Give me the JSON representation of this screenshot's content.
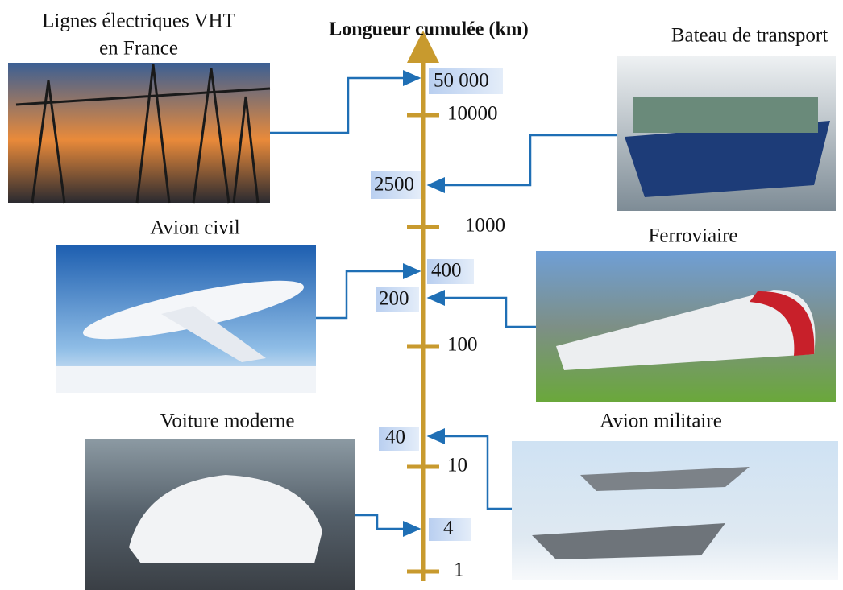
{
  "title": "Longueur cumulée (km)",
  "axis_ticks": [
    "10000",
    "1000",
    "100",
    "10",
    "1"
  ],
  "items": [
    {
      "label": [
        "Lignes électriques VHT",
        "en France"
      ],
      "value": "50 000"
    },
    {
      "label": [
        "Bateau de transport"
      ],
      "value": "2500"
    },
    {
      "label": [
        "Avion civil"
      ],
      "value": "400"
    },
    {
      "label": [
        "Ferroviaire"
      ],
      "value": "200"
    },
    {
      "label": [
        "Voiture moderne"
      ],
      "value": "4"
    },
    {
      "label": [
        "Avion militaire"
      ],
      "value": "40"
    }
  ]
}
